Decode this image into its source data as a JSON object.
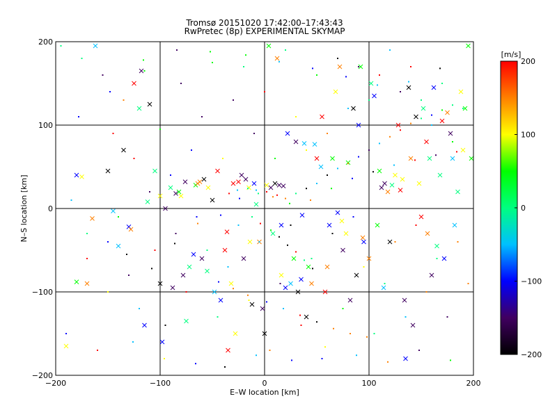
{
  "chart_data": {
    "type": "scatter",
    "title": "Tromsø 20151020 17:42:00–17:43:43",
    "subtitle": "RwPretec (8p) EXPERIMENTAL SKYMAP",
    "xlabel": "E–W location [km]",
    "ylabel": "N–S location [km]",
    "xlim": [
      -200,
      200
    ],
    "ylim": [
      -200,
      200
    ],
    "x_ticks": [
      "−200",
      "−100",
      "0",
      "100",
      "200"
    ],
    "y_ticks": [
      "−200",
      "−100",
      "0",
      "100",
      "200"
    ],
    "x_tick_values": [
      -200,
      -100,
      0,
      100,
      200
    ],
    "y_tick_values": [
      -200,
      -100,
      0,
      100,
      200
    ],
    "grid": true,
    "colorbar": {
      "label": "[m/s]",
      "range": [
        -200,
        200
      ],
      "ticks": [
        "200",
        "100",
        "0",
        "−100",
        "−200"
      ],
      "tick_values": [
        200,
        100,
        0,
        -100,
        -200
      ],
      "colormap": [
        "#000000",
        "#400060",
        "#0000ff",
        "#00c0ff",
        "#00ff80",
        "#00ff00",
        "#ffff00",
        "#ff8000",
        "#ff0000"
      ]
    },
    "series": [
      {
        "marker": "cross",
        "points": [
          [
            -190,
            -165
          ],
          [
            -180,
            -88
          ],
          [
            -180,
            40
          ],
          [
            -175,
            38
          ],
          [
            -170,
            -90
          ],
          [
            -165,
            -12
          ],
          [
            -162,
            195
          ],
          [
            -150,
            45
          ],
          [
            -145,
            -3
          ],
          [
            -140,
            -45
          ],
          [
            -135,
            70
          ],
          [
            -130,
            -22
          ],
          [
            -125,
            150
          ],
          [
            -120,
            120
          ],
          [
            -118,
            165
          ],
          [
            -115,
            -140
          ],
          [
            -110,
            125
          ],
          [
            -105,
            45
          ],
          [
            -100,
            -90
          ],
          [
            -100,
            15
          ],
          [
            -98,
            -160
          ],
          [
            -95,
            0
          ],
          [
            -90,
            25
          ],
          [
            -88,
            -95
          ],
          [
            -85,
            18
          ],
          [
            -82,
            20
          ],
          [
            -80,
            15
          ],
          [
            -78,
            -80
          ],
          [
            -75,
            -135
          ],
          [
            -72,
            -70
          ],
          [
            -68,
            -55
          ],
          [
            -66,
            28
          ],
          [
            -64,
            30
          ],
          [
            -62,
            32
          ],
          [
            -60,
            -60
          ],
          [
            -58,
            35
          ],
          [
            -55,
            -75
          ],
          [
            -50,
            10
          ],
          [
            -48,
            -100
          ],
          [
            -45,
            45
          ],
          [
            -42,
            -110
          ],
          [
            -38,
            -50
          ],
          [
            -35,
            -170
          ],
          [
            -32,
            -90
          ],
          [
            -30,
            30
          ],
          [
            -28,
            -150
          ],
          [
            -25,
            32
          ],
          [
            -22,
            40
          ],
          [
            -20,
            -60
          ],
          [
            -18,
            35
          ],
          [
            -15,
            25
          ],
          [
            -12,
            -115
          ],
          [
            -10,
            30
          ],
          [
            -8,
            5
          ],
          [
            -5,
            -40
          ],
          [
            -2,
            -120
          ],
          [
            0,
            -150
          ],
          [
            2,
            28
          ],
          [
            4,
            195
          ],
          [
            6,
            25
          ],
          [
            8,
            -30
          ],
          [
            10,
            30
          ],
          [
            12,
            180
          ],
          [
            14,
            28
          ],
          [
            16,
            -80
          ],
          [
            18,
            27
          ],
          [
            20,
            -95
          ],
          [
            22,
            90
          ],
          [
            25,
            -90
          ],
          [
            28,
            -60
          ],
          [
            30,
            80
          ],
          [
            32,
            -100
          ],
          [
            35,
            -85
          ],
          [
            38,
            78
          ],
          [
            40,
            -130
          ],
          [
            42,
            -70
          ],
          [
            45,
            -90
          ],
          [
            48,
            77
          ],
          [
            50,
            60
          ],
          [
            55,
            110
          ],
          [
            58,
            -100
          ],
          [
            60,
            -70
          ],
          [
            62,
            -20
          ],
          [
            65,
            60
          ],
          [
            68,
            140
          ],
          [
            70,
            -5
          ],
          [
            72,
            170
          ],
          [
            75,
            -50
          ],
          [
            78,
            -30
          ],
          [
            80,
            55
          ],
          [
            82,
            -110
          ],
          [
            85,
            120
          ],
          [
            88,
            -80
          ],
          [
            90,
            100
          ],
          [
            92,
            170
          ],
          [
            95,
            -40
          ],
          [
            100,
            -60
          ],
          [
            102,
            150
          ],
          [
            105,
            135
          ],
          [
            108,
            -20
          ],
          [
            110,
            45
          ],
          [
            112,
            25
          ],
          [
            115,
            30
          ],
          [
            118,
            20
          ],
          [
            120,
            -40
          ],
          [
            122,
            28
          ],
          [
            125,
            40
          ],
          [
            128,
            100
          ],
          [
            130,
            22
          ],
          [
            132,
            35
          ],
          [
            135,
            -180
          ],
          [
            138,
            145
          ],
          [
            140,
            60
          ],
          [
            142,
            -140
          ],
          [
            145,
            110
          ],
          [
            148,
            30
          ],
          [
            150,
            -10
          ],
          [
            152,
            120
          ],
          [
            155,
            80
          ],
          [
            158,
            60
          ],
          [
            160,
            -80
          ],
          [
            162,
            145
          ],
          [
            165,
            -45
          ],
          [
            168,
            40
          ],
          [
            170,
            105
          ],
          [
            172,
            -60
          ],
          [
            175,
            115
          ],
          [
            178,
            90
          ],
          [
            180,
            60
          ],
          [
            182,
            -20
          ],
          [
            185,
            20
          ],
          [
            188,
            140
          ],
          [
            190,
            70
          ],
          [
            192,
            120
          ],
          [
            195,
            195
          ],
          [
            198,
            60
          ],
          [
            -128,
            -25
          ],
          [
            -112,
            8
          ],
          [
            -76,
            32
          ],
          [
            -54,
            25
          ],
          [
            -36,
            -28
          ],
          [
            -14,
            -40
          ],
          [
            16,
            -20
          ],
          [
            36,
            -8
          ],
          [
            54,
            50
          ],
          [
            74,
            -15
          ],
          [
            94,
            -35
          ],
          [
            114,
            -95
          ],
          [
            134,
            -110
          ],
          [
            156,
            -30
          ]
        ]
      },
      {
        "marker": "dot",
        "points": [
          [
            -195,
            195
          ],
          [
            -190,
            -150
          ],
          [
            -185,
            10
          ],
          [
            -175,
            180
          ],
          [
            -170,
            -60
          ],
          [
            -160,
            -170
          ],
          [
            -155,
            160
          ],
          [
            -150,
            -100
          ],
          [
            -145,
            90
          ],
          [
            -140,
            -10
          ],
          [
            -135,
            130
          ],
          [
            -130,
            -80
          ],
          [
            -125,
            60
          ],
          [
            -120,
            -120
          ],
          [
            -115,
            165
          ],
          [
            -110,
            20
          ],
          [
            -105,
            -50
          ],
          [
            -100,
            95
          ],
          [
            -95,
            -140
          ],
          [
            -90,
            40
          ],
          [
            -85,
            -30
          ],
          [
            -80,
            150
          ],
          [
            -75,
            -100
          ],
          [
            -70,
            70
          ],
          [
            -65,
            -10
          ],
          [
            -60,
            110
          ],
          [
            -55,
            -50
          ],
          [
            -50,
            175
          ],
          [
            -45,
            -130
          ],
          [
            -40,
            60
          ],
          [
            -35,
            -70
          ],
          [
            -30,
            130
          ],
          [
            -25,
            -20
          ],
          [
            -20,
            170
          ],
          [
            -15,
            -110
          ],
          [
            -10,
            90
          ],
          [
            -5,
            -40
          ],
          [
            0,
            140
          ],
          [
            5,
            -170
          ],
          [
            10,
            60
          ],
          [
            15,
            -90
          ],
          [
            20,
            190
          ],
          [
            25,
            -20
          ],
          [
            30,
            110
          ],
          [
            35,
            -140
          ],
          [
            40,
            70
          ],
          [
            45,
            -60
          ],
          [
            50,
            160
          ],
          [
            55,
            -180
          ],
          [
            60,
            90
          ],
          [
            65,
            -30
          ],
          [
            70,
            180
          ],
          [
            75,
            -120
          ],
          [
            80,
            120
          ],
          [
            85,
            -10
          ],
          [
            90,
            170
          ],
          [
            95,
            -70
          ],
          [
            100,
            130
          ],
          [
            105,
            -150
          ],
          [
            110,
            160
          ],
          [
            115,
            -90
          ],
          [
            120,
            190
          ],
          [
            125,
            -40
          ],
          [
            130,
            140
          ],
          [
            135,
            -130
          ],
          [
            140,
            170
          ],
          [
            145,
            -20
          ],
          [
            150,
            130
          ],
          [
            155,
            -100
          ],
          [
            160,
            100
          ],
          [
            165,
            -60
          ],
          [
            170,
            150
          ],
          [
            175,
            -130
          ],
          [
            180,
            80
          ],
          [
            185,
            -40
          ],
          [
            190,
            120
          ],
          [
            195,
            -90
          ],
          [
            -132,
            -55
          ],
          [
            -108,
            -72
          ],
          [
            -86,
            -42
          ],
          [
            -64,
            -18
          ],
          [
            -42,
            -8
          ],
          [
            -24,
            12
          ],
          [
            -6,
            18
          ],
          [
            8,
            14
          ],
          [
            24,
            6
          ],
          [
            44,
            10
          ],
          [
            64,
            24
          ],
          [
            84,
            36
          ],
          [
            104,
            44
          ],
          [
            124,
            52
          ],
          [
            144,
            58
          ],
          [
            164,
            64
          ],
          [
            184,
            68
          ],
          [
            -178,
            110
          ],
          [
            -148,
            140
          ],
          [
            -116,
            178
          ],
          [
            -84,
            190
          ],
          [
            -52,
            188
          ],
          [
            -18,
            184
          ],
          [
            14,
            176
          ],
          [
            46,
            168
          ],
          [
            78,
            158
          ],
          [
            108,
            148
          ],
          [
            138,
            152
          ],
          [
            168,
            168
          ],
          [
            -170,
            -30
          ],
          [
            -150,
            -40
          ],
          [
            -126,
            -160
          ],
          [
            -96,
            -180
          ],
          [
            -66,
            -186
          ],
          [
            -38,
            -190
          ],
          [
            -8,
            -176
          ],
          [
            26,
            -182
          ],
          [
            58,
            -166
          ],
          [
            88,
            -176
          ],
          [
            118,
            -184
          ],
          [
            148,
            -170
          ],
          [
            178,
            -182
          ],
          [
            -34,
            18
          ],
          [
            -26,
            22
          ],
          [
            -16,
            24
          ],
          [
            -8,
            22
          ],
          [
            2,
            20
          ],
          [
            12,
            16
          ],
          [
            20,
            12
          ],
          [
            30,
            18
          ],
          [
            40,
            24
          ],
          [
            50,
            30
          ],
          [
            60,
            40
          ],
          [
            70,
            48
          ],
          [
            80,
            54
          ],
          [
            90,
            62
          ],
          [
            100,
            70
          ],
          [
            110,
            78
          ],
          [
            120,
            86
          ],
          [
            130,
            94
          ],
          [
            140,
            102
          ],
          [
            150,
            108
          ],
          [
            160,
            112
          ],
          [
            170,
            118
          ],
          [
            180,
            124
          ],
          [
            -12,
            -10
          ],
          [
            -4,
            -18
          ],
          [
            6,
            -26
          ],
          [
            14,
            -34
          ],
          [
            22,
            -44
          ],
          [
            30,
            -52
          ],
          [
            38,
            -62
          ],
          [
            46,
            -72
          ],
          [
            -44,
            -88
          ],
          [
            -30,
            -96
          ],
          [
            -16,
            -104
          ],
          [
            2,
            -112
          ],
          [
            18,
            -120
          ],
          [
            34,
            -128
          ],
          [
            50,
            -136
          ],
          [
            66,
            -144
          ],
          [
            82,
            -150
          ],
          [
            98,
            -154
          ]
        ]
      }
    ]
  }
}
